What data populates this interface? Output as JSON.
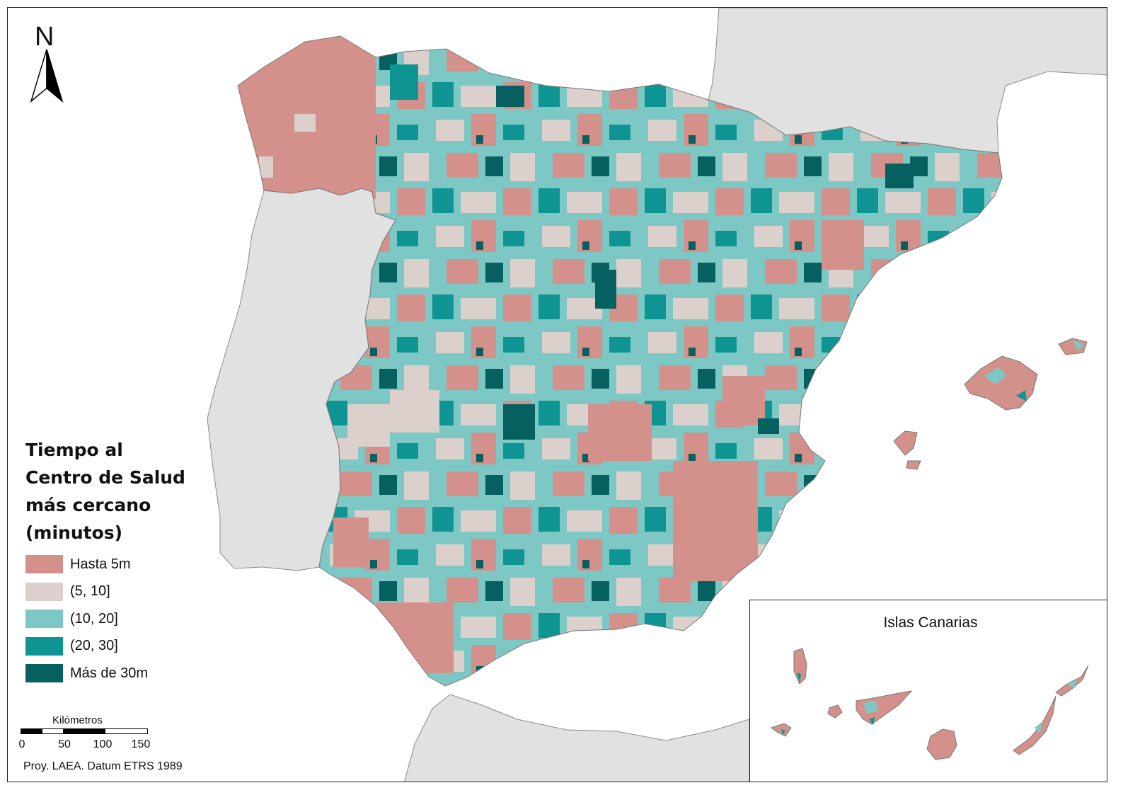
{
  "north": {
    "label": "N"
  },
  "legend": {
    "title_lines": [
      "Tiempo al",
      "Centro de Salud",
      "más cercano",
      "(minutos)"
    ],
    "items": [
      {
        "label": "Hasta 5m",
        "color": "#d4918b"
      },
      {
        "label": "(5, 10]",
        "color": "#dcd0cc"
      },
      {
        "label": "(10, 20]",
        "color": "#7dc8c4"
      },
      {
        "label": "(20, 30]",
        "color": "#0e9593"
      },
      {
        "label": "Más de 30m",
        "color": "#05605f"
      }
    ]
  },
  "scale": {
    "title": "Kilómetros",
    "ticks": [
      "0",
      "50",
      "100",
      "150"
    ]
  },
  "projection": "Proy. LAEA. Datum ETRS 1989",
  "inset": {
    "title": "Islas Canarias"
  },
  "colors": {
    "land_other": "#e1e1e1",
    "sea": "#ffffff",
    "border": "#8a8a8a"
  }
}
